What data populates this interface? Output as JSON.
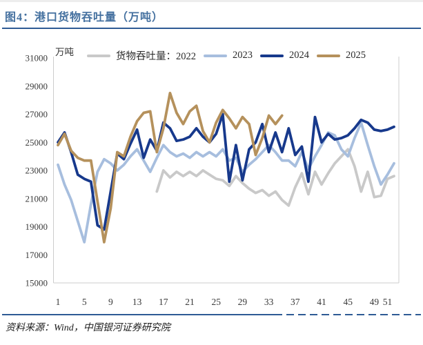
{
  "figure": {
    "title": "图4：港口货物吞吐量（万吨）",
    "source": "资料来源：Wind，中国银河证券研究院"
  },
  "colors": {
    "title_blue": "#44709f",
    "rule_blue": "#2e5a94",
    "axis_border": "#cccccc",
    "tick_text": "#3a3a3a"
  },
  "chart_data": {
    "type": "line",
    "title": "港口货物吞吐量（万吨）",
    "unit_label": "万吨",
    "xticks": [
      1,
      5,
      9,
      13,
      17,
      21,
      25,
      29,
      33,
      37,
      41,
      45,
      49,
      51
    ],
    "yticks": [
      15000,
      17000,
      19000,
      21000,
      23000,
      25000,
      27000,
      29000,
      31000
    ],
    "ylim": [
      15000,
      31000
    ],
    "xlim": [
      1,
      52
    ],
    "grid": false,
    "legend_position": "top",
    "series": [
      {
        "name": "2022",
        "legend_label": "货物吞吐量：2022",
        "color": "#c9c9c9",
        "start_week": 16,
        "values": [
          21500,
          23000,
          22500,
          22900,
          22600,
          22900,
          22600,
          23000,
          22700,
          22400,
          22300,
          21900,
          22600,
          22100,
          21700,
          21400,
          21600,
          21200,
          21500,
          20900,
          20500,
          21800,
          22800,
          21300,
          22900,
          22000,
          22800,
          23500,
          24000,
          24500,
          23300,
          21500,
          22900,
          21100,
          21200,
          22400,
          22600
        ]
      },
      {
        "name": "2023",
        "legend_label": "2023",
        "color": "#a7bede",
        "start_week": 1,
        "values": [
          23400,
          22000,
          20900,
          19400,
          17900,
          20600,
          22900,
          23800,
          23500,
          23000,
          23400,
          24000,
          24500,
          23700,
          22900,
          23900,
          24800,
          24300,
          24000,
          24200,
          23900,
          24300,
          24000,
          24300,
          24000,
          24500,
          23700,
          23900,
          22900,
          23400,
          23800,
          24300,
          24800,
          24300,
          23700,
          23700,
          23300,
          24300,
          23100,
          24000,
          24800,
          25700,
          25500,
          24500,
          24000,
          25300,
          26400,
          24800,
          23300,
          22000,
          22700,
          23500
        ]
      },
      {
        "name": "2024",
        "legend_label": "2024",
        "color": "#17398c",
        "start_week": 1,
        "values": [
          25000,
          25700,
          24300,
          22700,
          22400,
          22200,
          19100,
          18800,
          21500,
          24200,
          23800,
          24900,
          25900,
          23900,
          25200,
          24400,
          26400,
          26000,
          25100,
          25200,
          25400,
          26000,
          25400,
          25000,
          25600,
          27000,
          22200,
          24800,
          22300,
          24500,
          25000,
          26300,
          24300,
          25700,
          24300,
          26000,
          24100,
          24700,
          22200,
          26800,
          25000,
          25600,
          25200,
          25300,
          25500,
          26000,
          26600,
          26400,
          25900,
          25800,
          25900,
          26100
        ]
      },
      {
        "name": "2025",
        "legend_label": "2025",
        "color": "#b5915c",
        "start_week": 1,
        "values": [
          24800,
          25600,
          24400,
          23900,
          23700,
          23700,
          20800,
          17900,
          20300,
          24300,
          24000,
          25400,
          26500,
          27100,
          27200,
          24300,
          26000,
          28500,
          27100,
          26300,
          27200,
          27600,
          25800,
          25000,
          26400,
          27300,
          26700,
          26000,
          26800,
          26300,
          24100,
          25300,
          26900,
          26300,
          26900
        ]
      }
    ]
  }
}
